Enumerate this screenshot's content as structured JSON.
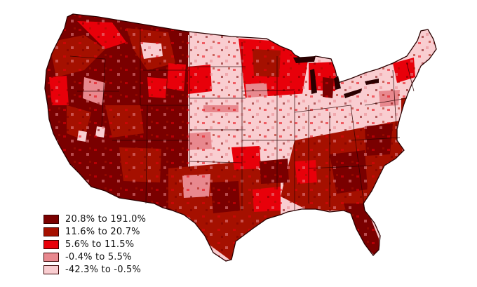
{
  "map": {
    "region": "Contiguous United States by county",
    "classes": [
      {
        "label": "20.8% to 191.0%",
        "color": "#7a0000"
      },
      {
        "label": "11.6% to 20.7%",
        "color": "#a51000"
      },
      {
        "label": "5.6% to 11.5%",
        "color": "#e8000a"
      },
      {
        "label": "-0.4% to 5.5%",
        "color": "#e8888e"
      },
      {
        "label": "-42.3% to -0.5%",
        "color": "#f9cdd0"
      }
    ]
  }
}
